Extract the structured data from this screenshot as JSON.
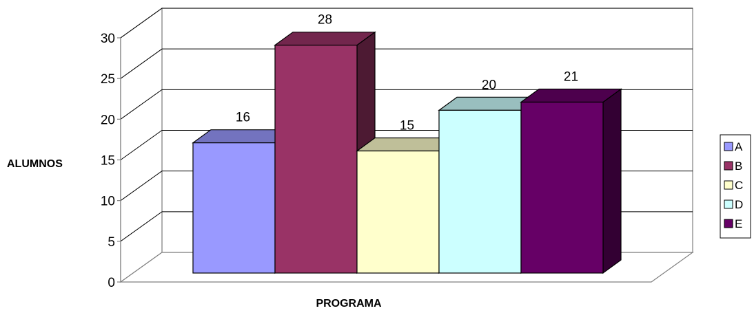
{
  "chart_data": {
    "type": "bar",
    "three_d": true,
    "categories": [
      "A",
      "B",
      "C",
      "D",
      "E"
    ],
    "values": [
      16,
      28,
      15,
      20,
      21
    ],
    "colors": [
      "#9999FF",
      "#993366",
      "#FFFFCC",
      "#CCFFFF",
      "#660066"
    ],
    "title": "",
    "xlabel": "PROGRAMA",
    "ylabel": "ALUMNOS",
    "ylim": [
      0,
      30
    ],
    "yticks": [
      0,
      5,
      10,
      15,
      20,
      25,
      30
    ],
    "grid": true,
    "legend": "right",
    "data_labels": true
  }
}
